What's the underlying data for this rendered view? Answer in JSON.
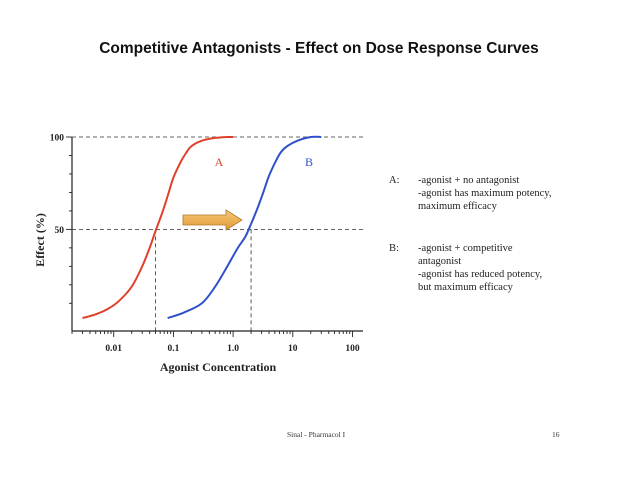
{
  "title": "Competitive Antagonists - Effect on Dose Response Curves",
  "chart_data": {
    "type": "line",
    "xscale": "log",
    "xlim": [
      0.002,
      150
    ],
    "ylim": [
      -5,
      100
    ],
    "xlabel": "Agonist Concentration",
    "ylabel": "Effect (%)",
    "x_ticks": [
      0.01,
      0.1,
      1.0,
      10,
      100
    ],
    "x_tick_labels": [
      "0.01",
      "0.1",
      "1.0",
      "10",
      "100"
    ],
    "y_ticks": [
      50,
      100
    ],
    "y_tick_labels": [
      "50",
      "100"
    ],
    "series": [
      {
        "name": "A",
        "color": "#e0402a",
        "x": [
          0.003,
          0.005,
          0.008,
          0.012,
          0.02,
          0.03,
          0.04,
          0.05,
          0.065,
          0.08,
          0.1,
          0.13,
          0.16,
          0.2,
          0.3,
          0.5,
          0.8,
          1.0
        ],
        "y": [
          2,
          4,
          7,
          11,
          19,
          30,
          40,
          49,
          59,
          68,
          78,
          86,
          91,
          95,
          98,
          99.5,
          100,
          100
        ]
      },
      {
        "name": "B",
        "color": "#3050c8",
        "x": [
          0.08,
          0.15,
          0.3,
          0.5,
          0.8,
          1.2,
          1.6,
          2.0,
          2.6,
          3.2,
          4.0,
          5.2,
          6.4,
          8.0,
          12,
          20,
          30
        ],
        "y": [
          2,
          5,
          10,
          19,
          30,
          40,
          46,
          53,
          62,
          70,
          79,
          87,
          92,
          95,
          98,
          100,
          100
        ]
      }
    ],
    "reference_lines": {
      "y_values": [
        50,
        100
      ],
      "x_values": [
        0.05,
        2.0
      ]
    },
    "curve_labels": [
      "A",
      "B"
    ]
  },
  "legend": [
    {
      "key": "A:",
      "lines": [
        "-agonist + no antagonist",
        "-agonist has maximum potency,",
        "maximum efficacy"
      ]
    },
    {
      "key": "B:",
      "lines": [
        "-agonist + competitive",
        "antagonist",
        "-agonist has reduced potency,",
        "but maximum efficacy"
      ]
    }
  ],
  "footer": {
    "source": "Sinal - Pharmacol I",
    "page": "16"
  },
  "colors": {
    "arrow_fill": "#f0b050",
    "arrow_stroke": "#b07a28"
  }
}
